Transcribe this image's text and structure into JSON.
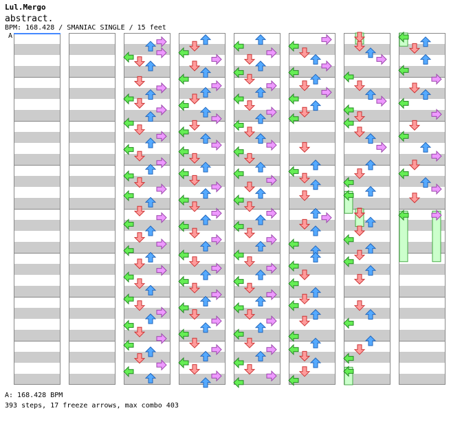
{
  "header": {
    "artist": "Lul.Mergo",
    "title": "abstract.",
    "info": "BPM: 168.428 / SMANIAC SINGLE / 15 feet"
  },
  "section_marker": "A",
  "footer": {
    "bpm_line": "A: 168.428 BPM",
    "stats": "393 steps, 17 freeze arrows, max combo 403"
  },
  "colors": {
    "stripe": "#cccccc",
    "bg": "#ffffff",
    "border": "#888888",
    "left_fill": "#66ee55",
    "left_stroke": "#228822",
    "down_fill": "#ff9c9c",
    "down_stroke": "#cc3333",
    "up_fill": "#55aaff",
    "up_stroke": "#2266bb",
    "right_fill": "#ee99ff",
    "right_stroke": "#9944aa",
    "freeze_fill": "#ccffcc",
    "freeze_stroke": "#44aa44",
    "bpm_line": "#4488ff"
  },
  "chart_data": {
    "type": "step_chart",
    "mode": "SMANIAC SINGLE",
    "difficulty_feet": 15,
    "bpm": 168.428,
    "columns": 8,
    "measures_per_column": 8,
    "lanes": [
      "left",
      "down",
      "up",
      "right"
    ],
    "notes": [
      [
        3,
        0.2,
        3
      ],
      [
        3,
        0.3,
        2
      ],
      [
        3,
        0.45,
        3
      ],
      [
        3,
        0.55,
        0
      ],
      [
        3,
        0.65,
        1
      ],
      [
        3,
        0.75,
        2
      ],
      [
        3,
        1.1,
        1
      ],
      [
        3,
        1.25,
        3
      ],
      [
        3,
        1.4,
        2
      ],
      [
        3,
        1.5,
        0
      ],
      [
        3,
        1.6,
        1
      ],
      [
        3,
        1.75,
        3
      ],
      [
        3,
        1.9,
        2
      ],
      [
        3,
        2.05,
        0
      ],
      [
        3,
        2.2,
        1
      ],
      [
        3,
        2.35,
        3
      ],
      [
        3,
        2.5,
        2
      ],
      [
        3,
        2.65,
        0
      ],
      [
        3,
        2.8,
        1
      ],
      [
        3,
        2.95,
        3
      ],
      [
        3,
        3.1,
        2
      ],
      [
        3,
        3.25,
        0
      ],
      [
        3,
        3.4,
        1
      ],
      [
        3,
        3.55,
        3
      ],
      [
        3,
        3.7,
        0
      ],
      [
        3,
        3.85,
        2
      ],
      [
        3,
        4.05,
        1
      ],
      [
        3,
        4.2,
        3
      ],
      [
        3,
        4.35,
        0
      ],
      [
        3,
        4.5,
        2
      ],
      [
        3,
        4.65,
        1
      ],
      [
        3,
        4.8,
        3
      ],
      [
        3,
        4.95,
        0
      ],
      [
        3,
        5.1,
        2
      ],
      [
        3,
        5.25,
        1
      ],
      [
        3,
        5.4,
        3
      ],
      [
        3,
        5.55,
        0
      ],
      [
        3,
        5.7,
        1
      ],
      [
        3,
        5.85,
        2
      ],
      [
        3,
        6.05,
        0
      ],
      [
        3,
        6.2,
        1
      ],
      [
        3,
        6.35,
        3
      ],
      [
        3,
        6.5,
        2
      ],
      [
        3,
        6.65,
        0
      ],
      [
        3,
        6.8,
        1
      ],
      [
        3,
        6.95,
        3
      ],
      [
        3,
        7.1,
        0
      ],
      [
        3,
        7.25,
        2
      ],
      [
        3,
        7.4,
        1
      ],
      [
        3,
        7.55,
        3
      ],
      [
        3,
        7.7,
        0
      ],
      [
        3,
        7.85,
        2
      ],
      [
        4,
        0.15,
        2
      ],
      [
        4,
        0.3,
        1
      ],
      [
        4,
        0.45,
        0
      ],
      [
        4,
        0.6,
        3
      ],
      [
        4,
        0.75,
        1
      ],
      [
        4,
        0.9,
        2
      ],
      [
        4,
        1.05,
        0
      ],
      [
        4,
        1.2,
        3
      ],
      [
        4,
        1.35,
        2
      ],
      [
        4,
        1.5,
        1
      ],
      [
        4,
        1.65,
        0
      ],
      [
        4,
        1.8,
        2
      ],
      [
        4,
        1.95,
        3
      ],
      [
        4,
        2.1,
        1
      ],
      [
        4,
        2.25,
        0
      ],
      [
        4,
        2.4,
        2
      ],
      [
        4,
        2.55,
        3
      ],
      [
        4,
        2.7,
        0
      ],
      [
        4,
        2.85,
        1
      ],
      [
        4,
        3.05,
        2
      ],
      [
        4,
        3.2,
        0
      ],
      [
        4,
        3.35,
        1
      ],
      [
        4,
        3.5,
        3
      ],
      [
        4,
        3.65,
        2
      ],
      [
        4,
        3.8,
        0
      ],
      [
        4,
        3.95,
        1
      ],
      [
        4,
        4.1,
        3
      ],
      [
        4,
        4.25,
        2
      ],
      [
        4,
        4.4,
        0
      ],
      [
        4,
        4.55,
        1
      ],
      [
        4,
        4.7,
        3
      ],
      [
        4,
        4.85,
        2
      ],
      [
        4,
        5.05,
        0
      ],
      [
        4,
        5.2,
        1
      ],
      [
        4,
        5.35,
        3
      ],
      [
        4,
        5.5,
        2
      ],
      [
        4,
        5.65,
        0
      ],
      [
        4,
        5.8,
        1
      ],
      [
        4,
        5.95,
        3
      ],
      [
        4,
        6.1,
        2
      ],
      [
        4,
        6.25,
        0
      ],
      [
        4,
        6.4,
        1
      ],
      [
        4,
        6.55,
        3
      ],
      [
        4,
        6.7,
        2
      ],
      [
        4,
        6.85,
        0
      ],
      [
        4,
        7.05,
        1
      ],
      [
        4,
        7.2,
        3
      ],
      [
        4,
        7.35,
        2
      ],
      [
        4,
        7.5,
        0
      ],
      [
        4,
        7.65,
        1
      ],
      [
        4,
        7.8,
        3
      ],
      [
        4,
        7.95,
        2
      ],
      [
        5,
        0.15,
        2
      ],
      [
        5,
        0.3,
        0
      ],
      [
        5,
        0.45,
        3
      ],
      [
        5,
        0.6,
        1
      ],
      [
        5,
        0.75,
        2
      ],
      [
        5,
        0.9,
        0
      ],
      [
        5,
        1.05,
        1
      ],
      [
        5,
        1.2,
        3
      ],
      [
        5,
        1.35,
        2
      ],
      [
        5,
        1.5,
        0
      ],
      [
        5,
        1.65,
        1
      ],
      [
        5,
        1.8,
        3
      ],
      [
        5,
        1.95,
        2
      ],
      [
        5,
        2.1,
        0
      ],
      [
        5,
        2.25,
        1
      ],
      [
        5,
        2.4,
        2
      ],
      [
        5,
        2.55,
        3
      ],
      [
        5,
        2.7,
        0
      ],
      [
        5,
        2.85,
        1
      ],
      [
        5,
        3.05,
        2
      ],
      [
        5,
        3.2,
        0
      ],
      [
        5,
        3.35,
        3
      ],
      [
        5,
        3.5,
        1
      ],
      [
        5,
        3.65,
        2
      ],
      [
        5,
        3.8,
        0
      ],
      [
        5,
        3.95,
        1
      ],
      [
        5,
        4.1,
        3
      ],
      [
        5,
        4.25,
        2
      ],
      [
        5,
        4.4,
        0
      ],
      [
        5,
        4.55,
        1
      ],
      [
        5,
        4.7,
        3
      ],
      [
        5,
        4.85,
        2
      ],
      [
        5,
        5.05,
        0
      ],
      [
        5,
        5.2,
        1
      ],
      [
        5,
        5.35,
        3
      ],
      [
        5,
        5.5,
        2
      ],
      [
        5,
        5.65,
        0
      ],
      [
        5,
        5.8,
        1
      ],
      [
        5,
        5.95,
        3
      ],
      [
        5,
        6.1,
        2
      ],
      [
        5,
        6.25,
        0
      ],
      [
        5,
        6.4,
        1
      ],
      [
        5,
        6.55,
        3
      ],
      [
        5,
        6.7,
        2
      ],
      [
        5,
        6.85,
        0
      ],
      [
        5,
        7.05,
        1
      ],
      [
        5,
        7.2,
        3
      ],
      [
        5,
        7.35,
        2
      ],
      [
        5,
        7.5,
        0
      ],
      [
        5,
        7.65,
        1
      ],
      [
        5,
        7.8,
        3
      ],
      [
        5,
        7.95,
        0
      ],
      [
        6,
        0.15,
        3
      ],
      [
        6,
        0.3,
        0
      ],
      [
        6,
        0.45,
        1
      ],
      [
        6,
        0.6,
        2
      ],
      [
        6,
        0.75,
        3
      ],
      [
        6,
        0.9,
        0
      ],
      [
        6,
        1.05,
        2
      ],
      [
        6,
        1.2,
        1
      ],
      [
        6,
        1.35,
        3
      ],
      [
        6,
        1.5,
        0
      ],
      [
        6,
        1.65,
        2
      ],
      [
        6,
        1.8,
        1
      ],
      [
        6,
        1.95,
        0
      ],
      [
        6,
        2.6,
        1
      ],
      [
        6,
        3.0,
        2
      ],
      [
        6,
        3.15,
        0
      ],
      [
        6,
        3.3,
        1
      ],
      [
        6,
        3.45,
        2
      ],
      [
        6,
        3.7,
        1
      ],
      [
        6,
        4.1,
        2
      ],
      [
        6,
        4.2,
        3
      ],
      [
        6,
        4.35,
        1
      ],
      [
        6,
        4.5,
        2
      ],
      [
        6,
        4.8,
        0
      ],
      [
        6,
        4.95,
        2
      ],
      [
        6,
        5.1,
        2
      ],
      [
        6,
        5.3,
        0
      ],
      [
        6,
        5.5,
        1
      ],
      [
        6,
        5.7,
        0
      ],
      [
        6,
        5.9,
        2
      ],
      [
        6,
        6.05,
        1
      ],
      [
        6,
        6.2,
        0
      ],
      [
        6,
        6.4,
        2
      ],
      [
        6,
        6.55,
        1
      ],
      [
        6,
        6.9,
        0
      ],
      [
        6,
        7.05,
        2
      ],
      [
        6,
        7.2,
        0
      ],
      [
        6,
        7.35,
        1
      ],
      [
        6,
        7.5,
        2
      ],
      [
        6,
        7.7,
        1
      ],
      [
        6,
        7.9,
        0
      ],
      [
        7,
        0.3,
        1
      ],
      [
        7,
        0.45,
        2
      ],
      [
        7,
        0.6,
        3
      ],
      [
        7,
        1.0,
        0
      ],
      [
        7,
        1.2,
        1
      ],
      [
        7,
        1.4,
        2
      ],
      [
        7,
        1.55,
        3
      ],
      [
        7,
        1.75,
        0
      ],
      [
        7,
        1.9,
        1
      ],
      [
        7,
        2.05,
        0
      ],
      [
        7,
        2.25,
        1
      ],
      [
        7,
        2.4,
        2
      ],
      [
        7,
        2.6,
        3
      ],
      [
        7,
        3.0,
        2
      ],
      [
        7,
        3.2,
        1
      ],
      [
        7,
        3.4,
        0
      ],
      [
        7,
        3.6,
        2
      ],
      [
        7,
        4.1,
        1
      ],
      [
        7,
        4.3,
        2
      ],
      [
        7,
        4.5,
        1
      ],
      [
        7,
        4.7,
        0
      ],
      [
        7,
        4.9,
        2
      ],
      [
        7,
        5.05,
        1
      ],
      [
        7,
        5.2,
        0
      ],
      [
        7,
        5.4,
        2
      ],
      [
        7,
        5.6,
        1
      ],
      [
        7,
        6.2,
        1
      ],
      [
        7,
        6.4,
        2
      ],
      [
        7,
        6.6,
        0
      ],
      [
        7,
        7.0,
        2
      ],
      [
        7,
        7.2,
        1
      ],
      [
        7,
        7.4,
        0
      ],
      [
        8,
        0.2,
        2
      ],
      [
        8,
        0.35,
        1
      ],
      [
        8,
        0.6,
        2
      ],
      [
        8,
        0.85,
        0
      ],
      [
        8,
        1.05,
        3
      ],
      [
        8,
        1.25,
        1
      ],
      [
        8,
        1.4,
        2
      ],
      [
        8,
        1.6,
        0
      ],
      [
        8,
        1.85,
        3
      ],
      [
        8,
        2.1,
        1
      ],
      [
        8,
        2.35,
        0
      ],
      [
        8,
        2.6,
        2
      ],
      [
        8,
        2.8,
        3
      ],
      [
        8,
        3.0,
        1
      ],
      [
        8,
        3.2,
        0
      ],
      [
        8,
        3.4,
        2
      ],
      [
        8,
        3.55,
        3
      ],
      [
        8,
        3.75,
        1
      ]
    ],
    "freezes": [
      [
        7,
        0.0,
        0.25,
        1
      ],
      [
        7,
        3.6,
        4.1,
        0
      ],
      [
        7,
        4.0,
        4.4,
        1
      ],
      [
        7,
        7.6,
        8.0,
        0
      ],
      [
        8,
        0.0,
        0.3,
        0
      ],
      [
        8,
        4.05,
        5.2,
        0
      ],
      [
        8,
        4.05,
        5.2,
        3
      ]
    ]
  }
}
